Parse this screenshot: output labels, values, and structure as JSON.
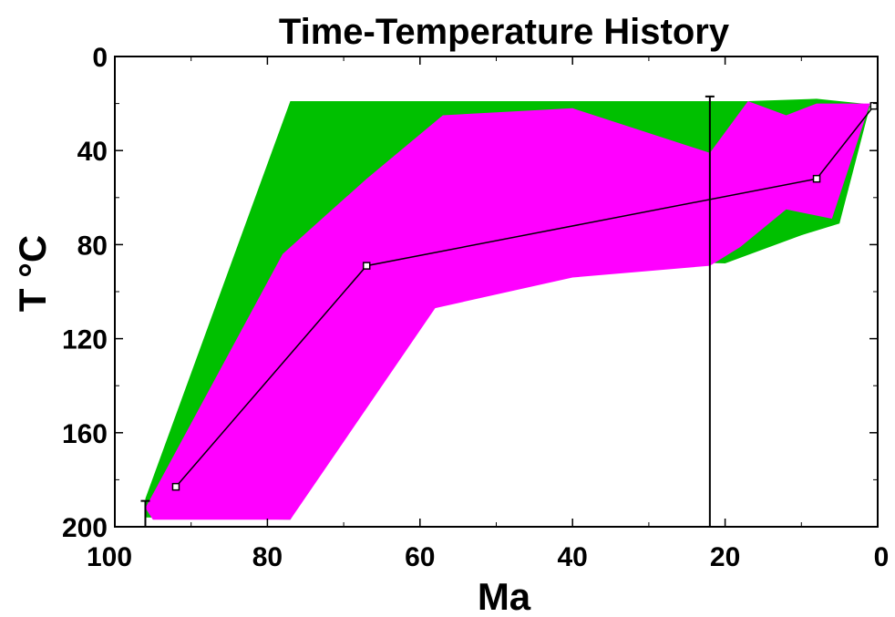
{
  "chart_data": {
    "type": "area",
    "title": "Time-Temperature History",
    "xlabel": "Ma",
    "ylabel": "T °C",
    "xlim": [
      100,
      0
    ],
    "ylim": [
      200,
      0
    ],
    "x_reversed": true,
    "y_reversed": true,
    "x_ticks": [
      100,
      80,
      60,
      40,
      20,
      0
    ],
    "y_ticks": [
      0,
      40,
      80,
      120,
      160,
      200
    ],
    "grid": false,
    "colors": {
      "acceptable_envelope": "#00c000",
      "good_envelope": "#ff00ff",
      "best_path": "#000000",
      "constraint": "#000000"
    },
    "series": [
      {
        "kind": "envelope",
        "color_key": "acceptable_envelope",
        "points": [
          [
            77,
            19
          ],
          [
            75,
            19
          ],
          [
            40,
            19
          ],
          [
            22,
            19
          ],
          [
            17,
            19
          ],
          [
            8,
            18
          ],
          [
            2,
            20
          ],
          [
            1,
            21
          ],
          [
            5,
            71
          ],
          [
            10,
            76
          ],
          [
            20,
            88
          ],
          [
            40,
            86
          ],
          [
            58,
            98
          ],
          [
            77,
            197
          ],
          [
            96,
            196
          ],
          [
            96,
            188
          ]
        ]
      },
      {
        "kind": "envelope",
        "color_key": "good_envelope",
        "points": [
          [
            57,
            25
          ],
          [
            40,
            22
          ],
          [
            22,
            41
          ],
          [
            17,
            19
          ],
          [
            12,
            25
          ],
          [
            8,
            20
          ],
          [
            1,
            20
          ],
          [
            6,
            69
          ],
          [
            12,
            65
          ],
          [
            18,
            81
          ],
          [
            22,
            89
          ],
          [
            40,
            94
          ],
          [
            58,
            107
          ],
          [
            77,
            197
          ],
          [
            95,
            197
          ],
          [
            96,
            192
          ],
          [
            78,
            84
          ],
          [
            67,
            52
          ]
        ]
      },
      {
        "kind": "line",
        "color_key": "best_path",
        "x": [
          92,
          67,
          8,
          0.5
        ],
        "y": [
          183,
          89,
          52,
          21
        ],
        "markers": true
      }
    ],
    "constraints": [
      {
        "x": [
          22,
          22
        ],
        "y": [
          200,
          17
        ]
      },
      {
        "x": [
          96,
          96
        ],
        "y": [
          200,
          189
        ]
      }
    ]
  }
}
